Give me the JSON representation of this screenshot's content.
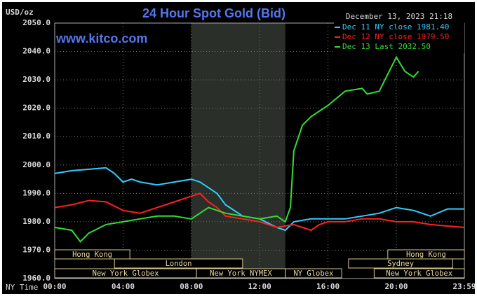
{
  "chart_data": {
    "type": "line",
    "title": "24 Hour Spot Gold (Bid)",
    "y_axis_label": "USD/oz",
    "timestamp": "December 13, 2023 21:18",
    "watermark": "www.kitco.com",
    "x_axis_label": "NY Time",
    "xlim": [
      0,
      23.9833
    ],
    "xticks": [
      {
        "value": 0,
        "label": "00:00"
      },
      {
        "value": 4,
        "label": "04:00"
      },
      {
        "value": 8,
        "label": "08:00"
      },
      {
        "value": 12,
        "label": "12:00"
      },
      {
        "value": 16,
        "label": "16:00"
      },
      {
        "value": 20,
        "label": "20:00"
      },
      {
        "value": 23.9833,
        "label": "23:59"
      }
    ],
    "ylim": [
      1960,
      2050
    ],
    "yticks": [
      {
        "value": 1960,
        "label": "1960.0"
      },
      {
        "value": 1970,
        "label": "1970.0"
      },
      {
        "value": 1980,
        "label": "1980.0"
      },
      {
        "value": 1990,
        "label": "1990.0"
      },
      {
        "value": 2000,
        "label": "2000.0"
      },
      {
        "value": 2010,
        "label": "2010.0"
      },
      {
        "value": 2020,
        "label": "2020.0"
      },
      {
        "value": 2030,
        "label": "2030.0"
      },
      {
        "value": 2040,
        "label": "2040.0"
      },
      {
        "value": 2050,
        "label": "2050.0"
      }
    ],
    "grid": true,
    "shaded_range": [
      8,
      13.5
    ],
    "series": [
      {
        "name": "Dec 11 NY close 1981.40",
        "color": "#33ccff",
        "x": [
          0,
          1,
          2,
          3,
          3.5,
          4,
          4.5,
          5,
          6,
          7,
          8,
          8.5,
          9,
          9.5,
          10,
          11,
          12,
          13,
          13.5,
          14,
          15,
          16,
          17,
          18,
          19,
          20,
          21,
          22,
          23,
          23.9833
        ],
        "values": [
          1997,
          1998,
          1998.5,
          1999,
          1997,
          1994,
          1995,
          1994,
          1993,
          1994,
          1995,
          1994,
          1992,
          1990,
          1986,
          1982,
          1981,
          1978,
          1977,
          1980,
          1981,
          1981,
          1981,
          1982,
          1983,
          1985,
          1984,
          1982,
          1984.5,
          1984.5
        ]
      },
      {
        "name": "Dec 12 NY close 1979.50",
        "color": "#ff2020",
        "x": [
          0,
          1,
          2,
          3,
          4,
          5,
          6,
          7,
          8,
          8.5,
          9,
          9.5,
          10,
          11,
          12,
          13,
          14,
          15,
          15.5,
          16,
          17,
          18,
          19,
          20,
          21,
          22,
          23,
          23.9833
        ],
        "values": [
          1985,
          1986,
          1987.5,
          1987,
          1984,
          1983,
          1985,
          1987,
          1989,
          1990,
          1987,
          1985,
          1982,
          1981,
          1980,
          1978,
          1979,
          1977,
          1979,
          1980,
          1980,
          1981,
          1981,
          1980,
          1980,
          1979,
          1978.5,
          1978
        ]
      },
      {
        "name": "Dec 13 Last 2032.50",
        "color": "#33dd33",
        "x": [
          0,
          1,
          1.5,
          2,
          3,
          4,
          5,
          6,
          7,
          8,
          8.5,
          9,
          10,
          11,
          12,
          13,
          13.5,
          13.8,
          14,
          14.5,
          15,
          16,
          17,
          18,
          18.3,
          19,
          19.5,
          20,
          20.5,
          21,
          21.3
        ],
        "values": [
          1978,
          1977,
          1973,
          1976,
          1979,
          1980,
          1981,
          1982,
          1982,
          1981,
          1983,
          1985,
          1983,
          1982,
          1981,
          1982,
          1980,
          1985,
          2005,
          2014,
          2017,
          2021,
          2026,
          2027,
          2025,
          2026,
          2032,
          2038,
          2033,
          2031,
          2033
        ]
      }
    ],
    "sessions": [
      {
        "label": "Hong Kong",
        "start": 0,
        "end": 4.4
      },
      {
        "label": "London",
        "start": 3.5,
        "end": 11
      },
      {
        "label": "New York Globex",
        "start": 0,
        "end": 8.3
      },
      {
        "label": "New York NYMEX",
        "start": 8.3,
        "end": 13.5
      },
      {
        "label": "NY Globex",
        "start": 13.5,
        "end": 16.8
      },
      {
        "label": "Sydney",
        "start": 17.2,
        "end": 23.3
      },
      {
        "label": "Hong Kong",
        "start": 19.5,
        "end": 23.9833
      },
      {
        "label": "New York Globex",
        "start": 18.7,
        "end": 23.9833
      }
    ]
  }
}
